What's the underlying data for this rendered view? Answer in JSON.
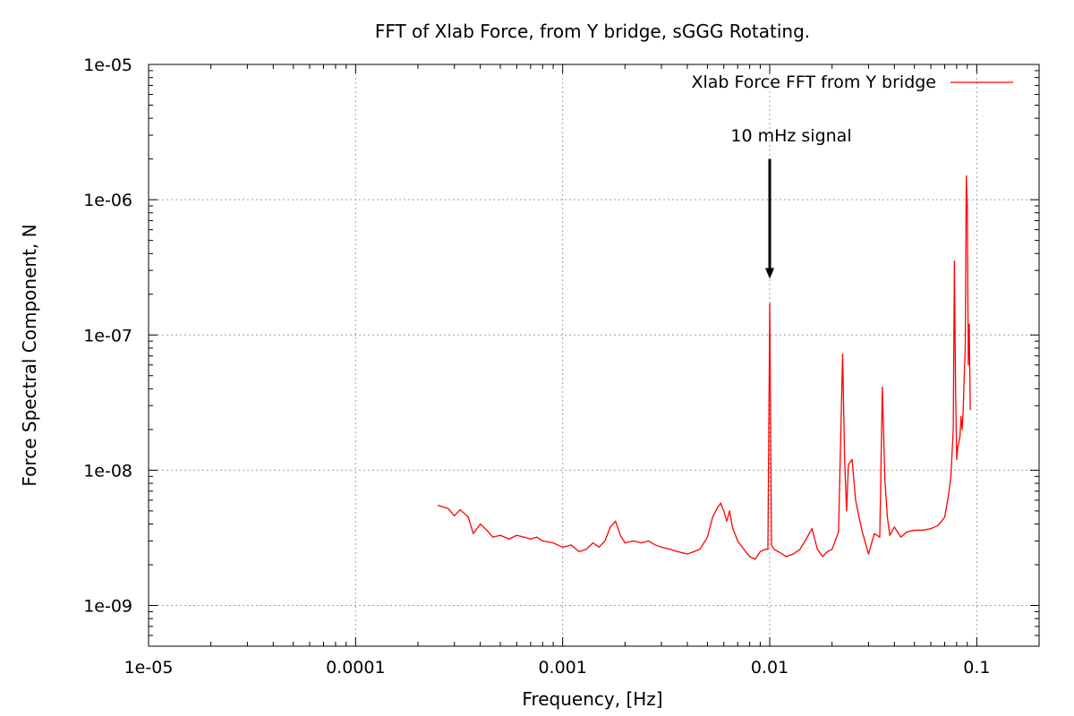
{
  "chart_data": {
    "type": "line",
    "title": "FFT of Xlab Force, from Y bridge, sGGG Rotating.",
    "xlabel": "Frequency, [Hz]",
    "ylabel": "Force Spectral Component, N",
    "xscale": "log",
    "yscale": "log",
    "xlim": [
      1e-05,
      0.2
    ],
    "ylim": [
      5e-10,
      1e-05
    ],
    "grid": true,
    "legend_position": "top-right",
    "x_tick_values": [
      1e-05,
      0.0001,
      0.001,
      0.01,
      0.1
    ],
    "x_tick_labels": [
      "1e-05",
      "0.0001",
      "0.001",
      "0.01",
      "0.1"
    ],
    "y_tick_values": [
      1e-09,
      1e-08,
      1e-07,
      1e-06,
      1e-05
    ],
    "y_tick_labels": [
      "1e-09",
      "1e-08",
      "1e-07",
      "1e-06",
      "1e-05"
    ],
    "annotation": {
      "text": "10 mHz signal",
      "arrow_x": 0.01,
      "arrow_from_y": 2e-06,
      "arrow_to_y": 2.6e-07
    },
    "series": [
      {
        "name": "Xlab Force FFT from Y bridge",
        "color": "#ff0000",
        "x": [
          0.00025,
          0.00028,
          0.0003,
          0.00032,
          0.00035,
          0.00037,
          0.0004,
          0.00043,
          0.00046,
          0.0005,
          0.00055,
          0.0006,
          0.00065,
          0.0007,
          0.00075,
          0.0008,
          0.0009,
          0.001,
          0.0011,
          0.0012,
          0.0013,
          0.0014,
          0.0015,
          0.0016,
          0.0017,
          0.0018,
          0.0019,
          0.002,
          0.0022,
          0.0024,
          0.0026,
          0.0028,
          0.003,
          0.0033,
          0.0036,
          0.004,
          0.0043,
          0.0046,
          0.005,
          0.0053,
          0.0056,
          0.0058,
          0.006,
          0.0062,
          0.0064,
          0.0066,
          0.007,
          0.0075,
          0.008,
          0.0085,
          0.009,
          0.0095,
          0.0098,
          0.01,
          0.0102,
          0.0105,
          0.011,
          0.012,
          0.013,
          0.014,
          0.015,
          0.016,
          0.017,
          0.018,
          0.019,
          0.02,
          0.0215,
          0.0225,
          0.023,
          0.0235,
          0.024,
          0.025,
          0.026,
          0.027,
          0.028,
          0.03,
          0.032,
          0.034,
          0.035,
          0.036,
          0.037,
          0.038,
          0.04,
          0.043,
          0.046,
          0.05,
          0.055,
          0.06,
          0.065,
          0.07,
          0.073,
          0.075,
          0.077,
          0.078,
          0.079,
          0.08,
          0.081,
          0.082,
          0.083,
          0.084,
          0.085,
          0.086,
          0.087,
          0.088,
          0.089,
          0.09,
          0.091,
          0.092,
          0.093
        ],
        "values": [
          5.5e-09,
          5.2e-09,
          4.6e-09,
          5.1e-09,
          4.5e-09,
          3.4e-09,
          4e-09,
          3.6e-09,
          3.2e-09,
          3.3e-09,
          3.1e-09,
          3.3e-09,
          3.2e-09,
          3.1e-09,
          3.2e-09,
          3e-09,
          2.9e-09,
          2.7e-09,
          2.8e-09,
          2.5e-09,
          2.6e-09,
          2.9e-09,
          2.7e-09,
          3e-09,
          3.8e-09,
          4.2e-09,
          3.3e-09,
          2.9e-09,
          3e-09,
          2.9e-09,
          3e-09,
          2.8e-09,
          2.7e-09,
          2.6e-09,
          2.5e-09,
          2.4e-09,
          2.5e-09,
          2.6e-09,
          3.2e-09,
          4.5e-09,
          5.3e-09,
          5.7e-09,
          5e-09,
          4.2e-09,
          5e-09,
          3.8e-09,
          3e-09,
          2.6e-09,
          2.3e-09,
          2.2e-09,
          2.5e-09,
          2.6e-09,
          2.6e-09,
          1.7e-07,
          2.8e-09,
          2.6e-09,
          2.5e-09,
          2.3e-09,
          2.4e-09,
          2.6e-09,
          3.1e-09,
          3.7e-09,
          2.6e-09,
          2.3e-09,
          2.5e-09,
          2.6e-09,
          3.5e-09,
          7.2e-08,
          1.2e-08,
          5e-09,
          1.1e-08,
          1.2e-08,
          6e-09,
          4.5e-09,
          3.5e-09,
          2.4e-09,
          3.4e-09,
          3.2e-09,
          4.1e-08,
          8.5e-09,
          4.5e-09,
          3.3e-09,
          3.8e-09,
          3.2e-09,
          3.5e-09,
          3.6e-09,
          3.6e-09,
          3.7e-09,
          3.9e-09,
          4.5e-09,
          6.5e-09,
          9e-09,
          2e-08,
          3.5e-07,
          4e-08,
          1.2e-08,
          1.5e-08,
          1.6e-08,
          1.8e-08,
          2.5e-08,
          2e-08,
          2.8e-08,
          5e-08,
          8e-08,
          1.5e-06,
          9e-07,
          6e-08,
          1.2e-07,
          2.8e-08
        ]
      }
    ]
  }
}
